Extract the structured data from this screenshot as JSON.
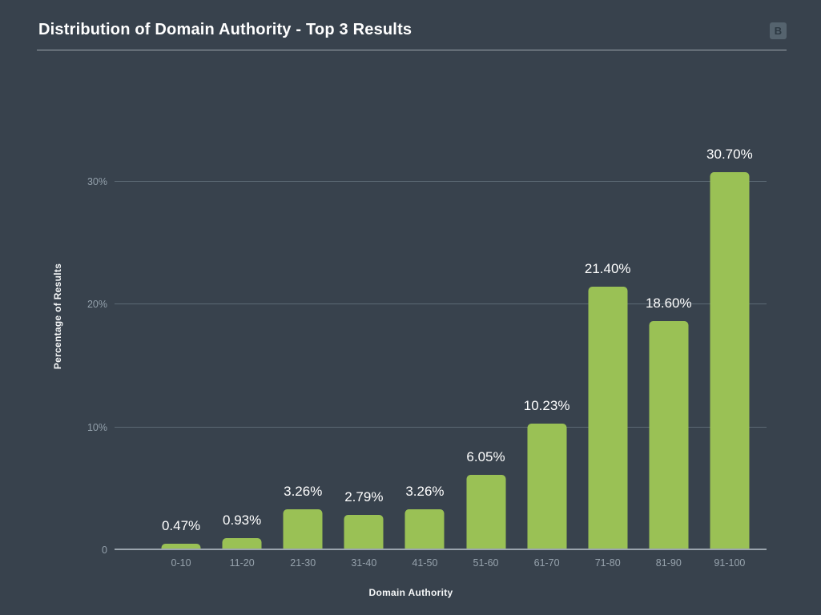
{
  "header": {
    "title": "Distribution of Domain Authority - Top 3 Results",
    "logo_letter": "B"
  },
  "chart_data": {
    "type": "bar",
    "title": "Distribution of Domain Authority - Top 3 Results",
    "xlabel": "Domain Authority",
    "ylabel": "Percentage of Results",
    "categories": [
      "0-10",
      "11-20",
      "21-30",
      "31-40",
      "41-50",
      "51-60",
      "61-70",
      "71-80",
      "81-90",
      "91-100"
    ],
    "values": [
      0.47,
      0.93,
      3.26,
      2.79,
      3.26,
      6.05,
      10.23,
      21.4,
      18.6,
      30.7
    ],
    "value_labels": [
      "0.47%",
      "0.93%",
      "3.26%",
      "2.79%",
      "3.26%",
      "6.05%",
      "10.23%",
      "21.40%",
      "18.60%",
      "30.70%"
    ],
    "y_ticks": [
      {
        "value": 0,
        "label": "0"
      },
      {
        "value": 10,
        "label": "10%"
      },
      {
        "value": 20,
        "label": "20%"
      },
      {
        "value": 30,
        "label": "30%"
      }
    ],
    "ylim": [
      0,
      30
    ],
    "grid": true,
    "legend": false,
    "colors": {
      "background": "#38424D",
      "bar": "#9AC155",
      "grid": "#5C6974",
      "axis_line": "#9AA4AD",
      "tick_label": "#93A0AB",
      "category_label": "#96A2AC",
      "value_label": "#FFFFFF",
      "title": "#FFFFFF"
    }
  }
}
